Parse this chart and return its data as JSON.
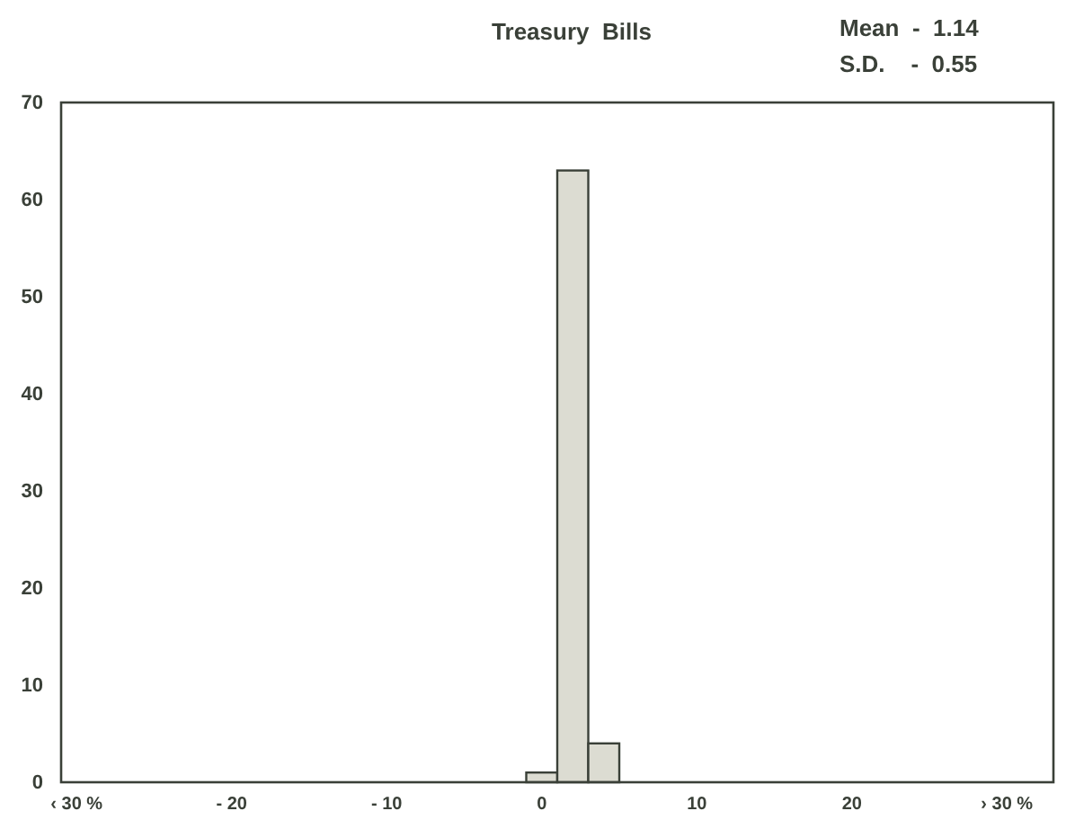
{
  "chart_data": {
    "type": "histogram",
    "title": "Treasury  Bills",
    "annotations": [
      "Mean  -  1.14",
      "S.D.    -  0.55"
    ],
    "bins": [
      -1,
      1,
      3,
      5
    ],
    "values": [
      1,
      63,
      4
    ],
    "color": "#dcdcd2",
    "xlim": [
      -31,
      33
    ],
    "xticks": [
      {
        "value": -30,
        "label": "‹ 30 %"
      },
      {
        "value": -20,
        "label": "- 20"
      },
      {
        "value": -10,
        "label": "- 10"
      },
      0,
      10,
      20,
      {
        "value": 30,
        "label": "› 30 %"
      }
    ],
    "ylim": [
      0,
      70
    ],
    "yticks": [
      0,
      10,
      20,
      30,
      40,
      50,
      60,
      70
    ],
    "grid": false
  }
}
